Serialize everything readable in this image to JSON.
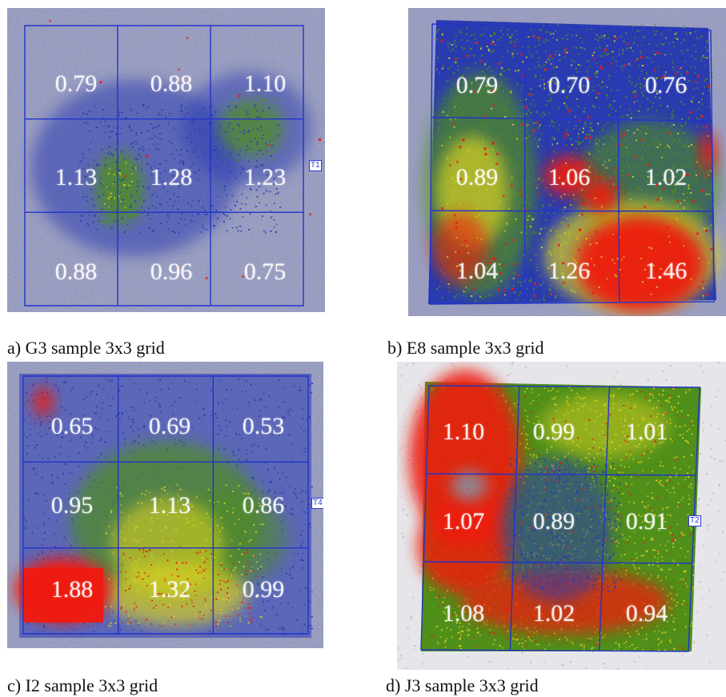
{
  "panels": [
    {
      "id": "a",
      "caption": "a) G3 sample 3x3 grid",
      "marker": "T1",
      "values": [
        "0.79",
        "0.88",
        "1.10",
        "1.13",
        "1.28",
        "1.23",
        "0.88",
        "0.96",
        "0.75"
      ]
    },
    {
      "id": "b",
      "caption": "b) E8 sample 3x3 grid",
      "marker": "",
      "values": [
        "0.79",
        "0.70",
        "0.76",
        "0.89",
        "1.06",
        "1.02",
        "1.04",
        "1.26",
        "1.46"
      ]
    },
    {
      "id": "c",
      "caption": "c) I2 sample 3x3 grid",
      "marker": "T4",
      "values": [
        "0.65",
        "0.69",
        "0.53",
        "0.95",
        "1.13",
        "0.86",
        "1.88",
        "1.32",
        "0.99"
      ]
    },
    {
      "id": "d",
      "caption": "d) J3 sample 3x3 grid",
      "marker": "T2",
      "values": [
        "1.10",
        "0.99",
        "1.01",
        "1.07",
        "0.89",
        "0.91",
        "1.08",
        "1.02",
        "0.94"
      ]
    }
  ],
  "colors": {
    "grid_line": "#2233cc",
    "noise_gray": "#a9a9b4",
    "low": "#2a3bb0",
    "mid": "#4f8f1a",
    "high_yellow": "#d8d020",
    "high_red": "#ee1a10"
  }
}
